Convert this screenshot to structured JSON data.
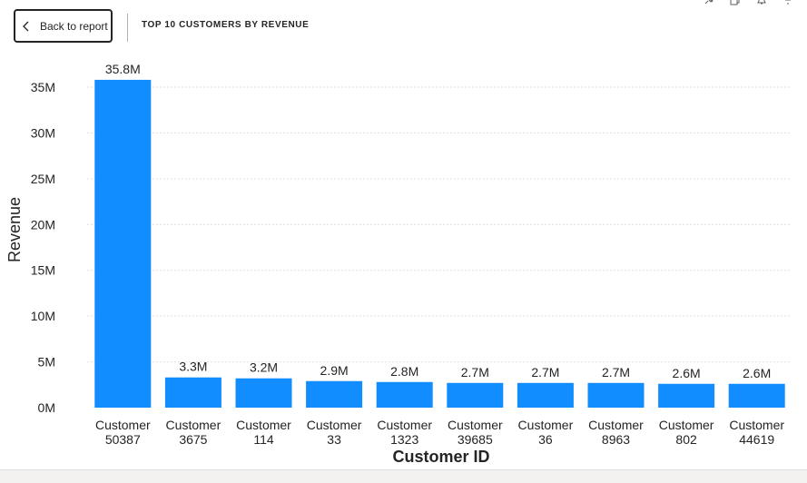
{
  "header": {
    "back_label": "Back to report",
    "title": "TOP 10 CUSTOMERS BY REVENUE"
  },
  "header_icons": [
    "pin-icon",
    "copy-icon",
    "alert-icon",
    "filter-icon"
  ],
  "colors": {
    "bar": "#118DFF",
    "gridline": "#e1dfdd",
    "text": "#252423"
  },
  "chart_data": {
    "type": "bar",
    "xlabel": "Customer ID",
    "ylabel": "Revenue",
    "ylim": [
      0,
      37500000
    ],
    "yticks": [
      {
        "value": 0,
        "label": "0M"
      },
      {
        "value": 5000000,
        "label": "5M"
      },
      {
        "value": 10000000,
        "label": "10M"
      },
      {
        "value": 15000000,
        "label": "15M"
      },
      {
        "value": 20000000,
        "label": "20M"
      },
      {
        "value": 25000000,
        "label": "25M"
      },
      {
        "value": 30000000,
        "label": "30M"
      },
      {
        "value": 35000000,
        "label": "35M"
      }
    ],
    "grid": true,
    "categories": [
      [
        "Customer",
        "50387"
      ],
      [
        "Customer",
        "3675"
      ],
      [
        "Customer",
        "114"
      ],
      [
        "Customer",
        "33"
      ],
      [
        "Customer",
        "1323"
      ],
      [
        "Customer",
        "39685"
      ],
      [
        "Customer",
        "36"
      ],
      [
        "Customer",
        "8963"
      ],
      [
        "Customer",
        "802"
      ],
      [
        "Customer",
        "44619"
      ]
    ],
    "values": [
      35800000,
      3300000,
      3200000,
      2900000,
      2800000,
      2700000,
      2700000,
      2700000,
      2600000,
      2600000
    ],
    "data_labels": [
      "35.8M",
      "3.3M",
      "3.2M",
      "2.9M",
      "2.8M",
      "2.7M",
      "2.7M",
      "2.7M",
      "2.6M",
      "2.6M"
    ]
  }
}
